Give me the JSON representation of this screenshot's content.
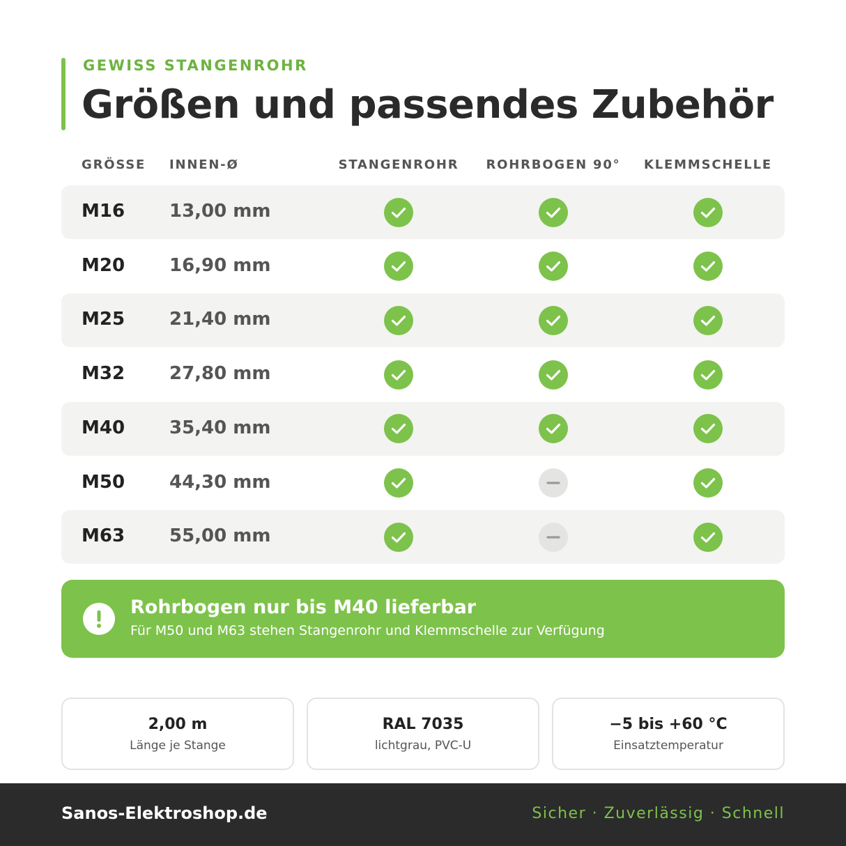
{
  "header": {
    "kicker": "GEWISS STANGENROHR",
    "title": "Größen und passendes Zubehör"
  },
  "table": {
    "columns": [
      "GRÖSSE",
      "INNEN-Ø",
      "STANGENROHR",
      "ROHRBOGEN 90°",
      "KLEMMSCHELLE"
    ],
    "rows": [
      {
        "size": "M16",
        "inner": "13,00 mm",
        "available": [
          true,
          true,
          true
        ]
      },
      {
        "size": "M20",
        "inner": "16,90 mm",
        "available": [
          true,
          true,
          true
        ]
      },
      {
        "size": "M25",
        "inner": "21,40 mm",
        "available": [
          true,
          true,
          true
        ]
      },
      {
        "size": "M32",
        "inner": "27,80 mm",
        "available": [
          true,
          true,
          true
        ]
      },
      {
        "size": "M40",
        "inner": "35,40 mm",
        "available": [
          true,
          true,
          true
        ]
      },
      {
        "size": "M50",
        "inner": "44,30 mm",
        "available": [
          true,
          false,
          true
        ]
      },
      {
        "size": "M63",
        "inner": "55,00 mm",
        "available": [
          true,
          false,
          true
        ]
      }
    ]
  },
  "notice": {
    "title": "Rohrbogen nur bis M40 lieferbar",
    "text": "Für M50 und M63 stehen Stangenrohr und Klemmschelle zur Verfügung"
  },
  "specs": [
    {
      "value": "2,00 m",
      "label": "Länge je Stange"
    },
    {
      "value": "RAL 7035",
      "label": "lichtgrau, PVC-U"
    },
    {
      "value": "−5 bis +60 °C",
      "label": "Einsatztemperatur"
    }
  ],
  "footer": {
    "brand": "Sanos-Elektroshop.de",
    "tagline": "Sicher · Zuverlässig · Schnell"
  }
}
